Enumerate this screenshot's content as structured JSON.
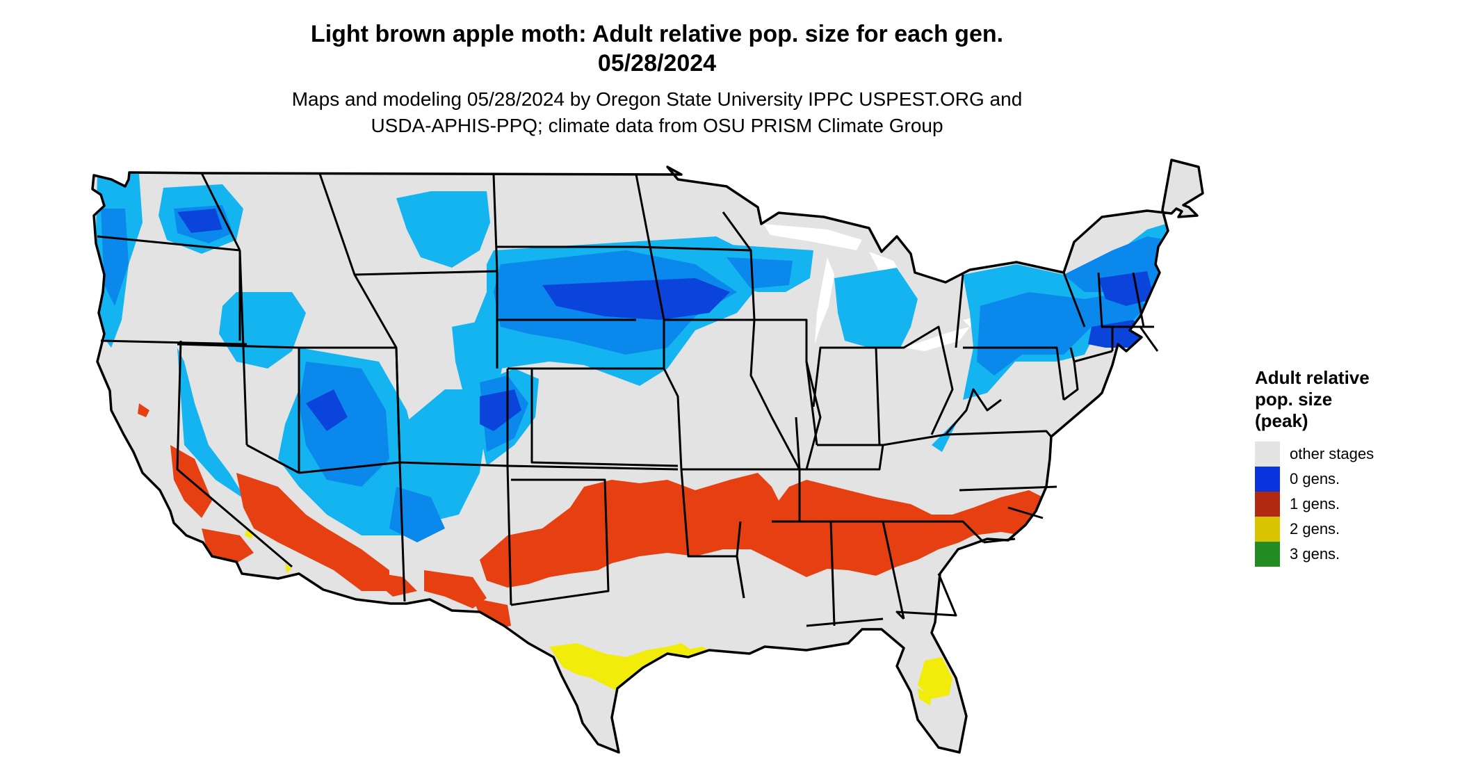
{
  "title_line1": "Light brown apple moth: Adult relative pop. size for each gen.",
  "title_line2": "05/28/2024",
  "subtitle_line1": "Maps and modeling 05/28/2024 by Oregon State University IPPC USPEST.ORG and",
  "subtitle_line2": "USDA-APHIS-PPQ; climate data from OSU PRISM Climate Group",
  "legend": {
    "title_line1": "Adult relative",
    "title_line2": "pop. size",
    "title_line3": "(peak)",
    "items": [
      {
        "label": "other stages",
        "color": "#e3e3e3"
      },
      {
        "label": "0 gens.",
        "color": "#0a33e0"
      },
      {
        "label": "1 gens.",
        "color": "#b22a12"
      },
      {
        "label": "2 gens.",
        "color": "#d9c400"
      },
      {
        "label": "3 gens.",
        "color": "#228b22"
      }
    ]
  },
  "map_colors": {
    "land": "#e3e3e3",
    "zero_gens_light": "#14b4f0",
    "zero_gens_mid": "#0a88ec",
    "zero_gens_dark": "#0a44da",
    "one_gen": "#e64012",
    "two_gens": "#f2ec0a",
    "three_gens": "#2ea02e",
    "border": "#000000"
  }
}
